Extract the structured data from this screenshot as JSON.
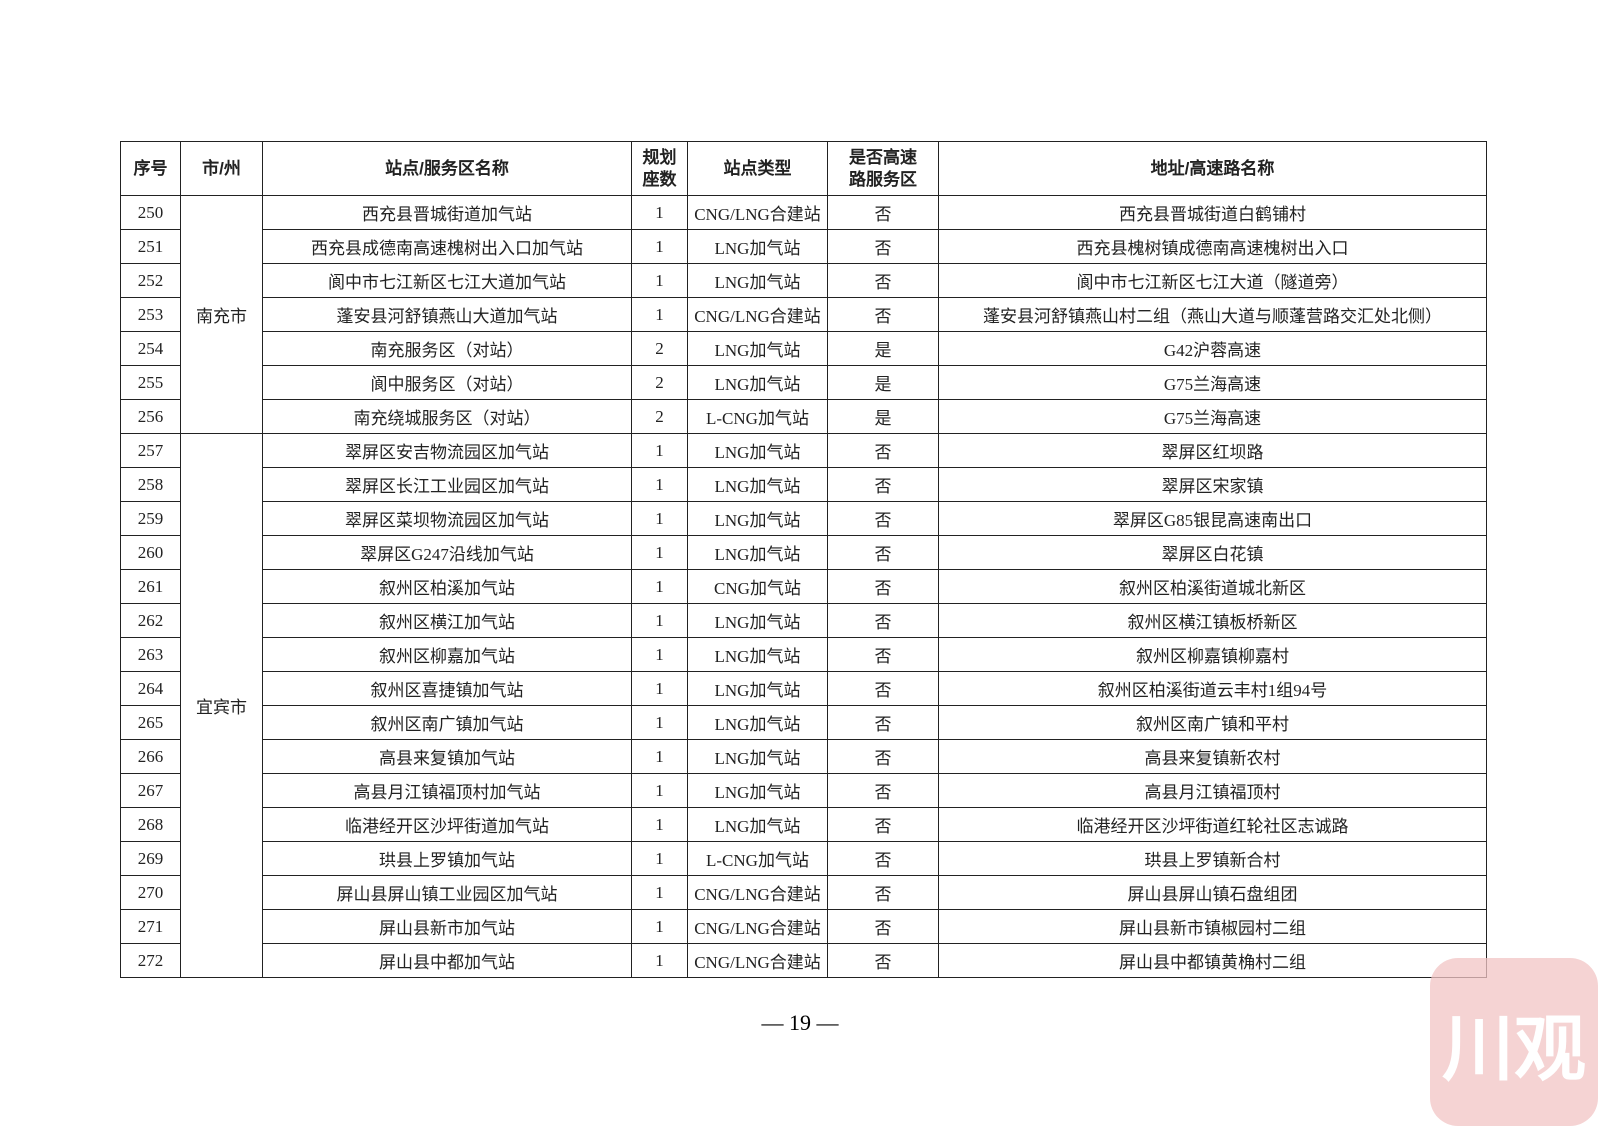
{
  "table": {
    "header": [
      "序号",
      "市/州",
      "站点/服务区名称",
      "规划\n座数",
      "站点类型",
      "是否高速\n路服务区",
      "地址/高速路名称"
    ],
    "groups": [
      {
        "city": "南充市",
        "rows": [
          [
            "250",
            "西充县晋城街道加气站",
            "1",
            "CNG/LNG合建站",
            "否",
            "西充县晋城街道白鹤铺村"
          ],
          [
            "251",
            "西充县成德南高速槐树出入口加气站",
            "1",
            "LNG加气站",
            "否",
            "西充县槐树镇成德南高速槐树出入口"
          ],
          [
            "252",
            "阆中市七江新区七江大道加气站",
            "1",
            "LNG加气站",
            "否",
            "阆中市七江新区七江大道（隧道旁）"
          ],
          [
            "253",
            "蓬安县河舒镇燕山大道加气站",
            "1",
            "CNG/LNG合建站",
            "否",
            "蓬安县河舒镇燕山村二组（燕山大道与顺蓬营路交汇处北侧）"
          ],
          [
            "254",
            "南充服务区（对站）",
            "2",
            "LNG加气站",
            "是",
            "G42沪蓉高速"
          ],
          [
            "255",
            "阆中服务区（对站）",
            "2",
            "LNG加气站",
            "是",
            "G75兰海高速"
          ],
          [
            "256",
            "南充绕城服务区（对站）",
            "2",
            "L-CNG加气站",
            "是",
            "G75兰海高速"
          ]
        ]
      },
      {
        "city": "宜宾市",
        "rows": [
          [
            "257",
            "翠屏区安吉物流园区加气站",
            "1",
            "LNG加气站",
            "否",
            "翠屏区红坝路"
          ],
          [
            "258",
            "翠屏区长江工业园区加气站",
            "1",
            "LNG加气站",
            "否",
            "翠屏区宋家镇"
          ],
          [
            "259",
            "翠屏区菜坝物流园区加气站",
            "1",
            "LNG加气站",
            "否",
            "翠屏区G85银昆高速南出口"
          ],
          [
            "260",
            "翠屏区G247沿线加气站",
            "1",
            "LNG加气站",
            "否",
            "翠屏区白花镇"
          ],
          [
            "261",
            "叙州区柏溪加气站",
            "1",
            "CNG加气站",
            "否",
            "叙州区柏溪街道城北新区"
          ],
          [
            "262",
            "叙州区横江加气站",
            "1",
            "LNG加气站",
            "否",
            "叙州区横江镇板桥新区"
          ],
          [
            "263",
            "叙州区柳嘉加气站",
            "1",
            "LNG加气站",
            "否",
            "叙州区柳嘉镇柳嘉村"
          ],
          [
            "264",
            "叙州区喜捷镇加气站",
            "1",
            "LNG加气站",
            "否",
            "叙州区柏溪街道云丰村1组94号"
          ],
          [
            "265",
            "叙州区南广镇加气站",
            "1",
            "LNG加气站",
            "否",
            "叙州区南广镇和平村"
          ],
          [
            "266",
            "高县来复镇加气站",
            "1",
            "LNG加气站",
            "否",
            "高县来复镇新农村"
          ],
          [
            "267",
            "高县月江镇福顶村加气站",
            "1",
            "LNG加气站",
            "否",
            "高县月江镇福顶村"
          ],
          [
            "268",
            "临港经开区沙坪街道加气站",
            "1",
            "LNG加气站",
            "否",
            "临港经开区沙坪街道红轮社区志诚路"
          ],
          [
            "269",
            "珙县上罗镇加气站",
            "1",
            "L-CNG加气站",
            "否",
            "珙县上罗镇新合村"
          ],
          [
            "270",
            "屏山县屏山镇工业园区加气站",
            "1",
            "CNG/LNG合建站",
            "否",
            "屏山县屏山镇石盘组团"
          ],
          [
            "271",
            "屏山县新市加气站",
            "1",
            "CNG/LNG合建站",
            "否",
            "屏山县新市镇椒园村二组"
          ],
          [
            "272",
            "屏山县中都加气站",
            "1",
            "CNG/LNG合建站",
            "否",
            "屏山县中都镇黄桷村二组"
          ]
        ]
      }
    ]
  },
  "footer": {
    "page": "— 19 —"
  },
  "watermark": {
    "text": "川观"
  }
}
